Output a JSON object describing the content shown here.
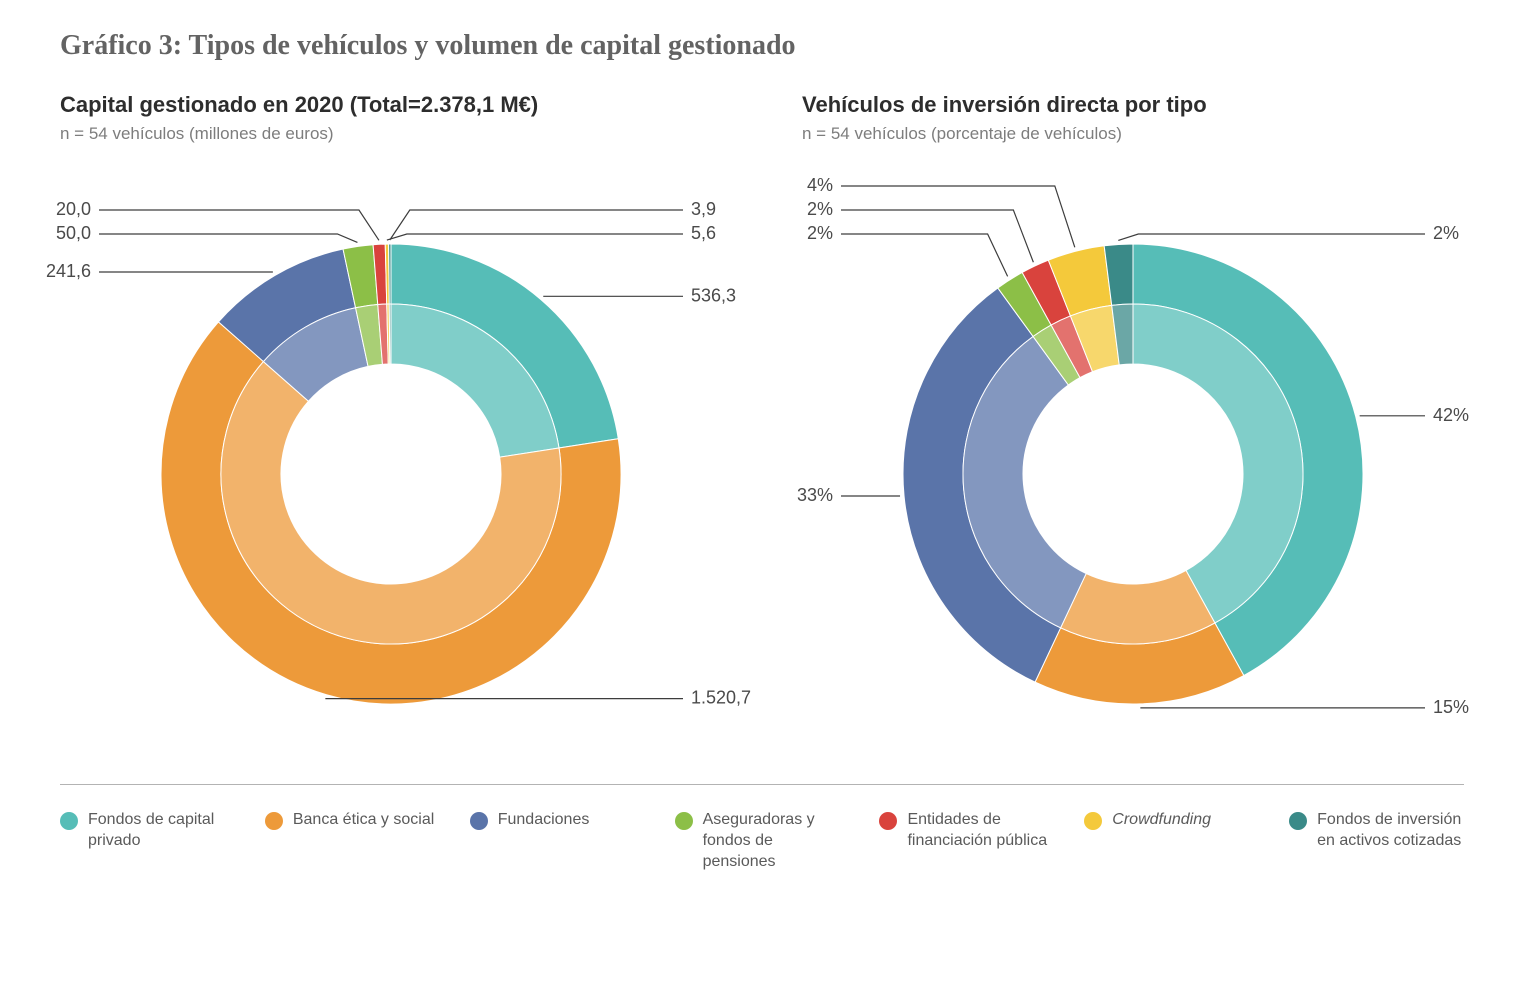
{
  "title": "Gráfico 3: Tipos de vehículos y volumen de capital gestionado",
  "colors": {
    "fondos_capital_privado": "#56bdb7",
    "banca_etica": "#ed9a3a",
    "fundaciones": "#5a74a9",
    "aseguradoras": "#8cbf47",
    "entidades_publica": "#d9433d",
    "crowdfunding": "#f4c93b",
    "fondos_cotizadas": "#3a8a88",
    "inner_tint_opacity": 0.6,
    "leader_line": "#3d3d3d",
    "text": "#4a4a4a",
    "bg": "#ffffff"
  },
  "chart_left": {
    "title": "Capital gestionado en 2020 (Total=2.378,1 M€)",
    "subtitle": "n = 54 vehículos (millones de euros)",
    "type": "donut",
    "inner_radius": 110,
    "outer_radius": 230,
    "ring_split": 170,
    "start_angle_deg": 0,
    "slices": [
      {
        "key": "fondos_capital_privado",
        "value": 536.3,
        "label": "536,3",
        "label_side": "right"
      },
      {
        "key": "banca_etica",
        "value": 1520.7,
        "label": "1.520,7",
        "label_side": "right-bottom"
      },
      {
        "key": "fundaciones",
        "value": 241.6,
        "label": "241,6",
        "label_side": "left"
      },
      {
        "key": "aseguradoras",
        "value": 50.0,
        "label": "50,0",
        "label_side": "left-top"
      },
      {
        "key": "entidades_publica",
        "value": 20.0,
        "label": "20,0",
        "label_side": "left-top"
      },
      {
        "key": "crowdfunding",
        "value": 5.6,
        "label": "5,6",
        "label_side": "right-top"
      },
      {
        "key": "fondos_cotizadas",
        "value": 3.9,
        "label": "3,9",
        "label_side": "right-top"
      }
    ]
  },
  "chart_right": {
    "title": "Vehículos de inversión directa por tipo",
    "subtitle": "n = 54 vehículos (porcentaje de vehículos)",
    "type": "donut",
    "inner_radius": 110,
    "outer_radius": 230,
    "ring_split": 170,
    "start_angle_deg": 0,
    "slices": [
      {
        "key": "fondos_capital_privado",
        "value": 42,
        "label": "42%",
        "label_side": "right"
      },
      {
        "key": "banca_etica",
        "value": 15,
        "label": "15%",
        "label_side": "right-bottom"
      },
      {
        "key": "fundaciones",
        "value": 33,
        "label": "33%",
        "label_side": "left"
      },
      {
        "key": "aseguradoras",
        "value": 2,
        "label": "2%",
        "label_side": "left-top"
      },
      {
        "key": "entidades_publica",
        "value": 2,
        "label": "2%",
        "label_side": "left-top"
      },
      {
        "key": "crowdfunding",
        "value": 4,
        "label": "4%",
        "label_side": "left-top"
      },
      {
        "key": "fondos_cotizadas",
        "value": 2,
        "label": "2%",
        "label_side": "right-top"
      }
    ]
  },
  "legend": [
    {
      "key": "fondos_capital_privado",
      "text": "Fondos de capital privado"
    },
    {
      "key": "banca_etica",
      "text": "Banca ética y social"
    },
    {
      "key": "fundaciones",
      "text": "Fundaciones"
    },
    {
      "key": "aseguradoras",
      "text": "Aseguradoras y fondos de pensiones"
    },
    {
      "key": "entidades_publica",
      "text": "Entidades de financiación pública"
    },
    {
      "key": "crowdfunding",
      "text": "Crowdfunding",
      "italic": true
    },
    {
      "key": "fondos_cotizadas",
      "text": "Fondos de inversión en activos cotizadas"
    }
  ]
}
